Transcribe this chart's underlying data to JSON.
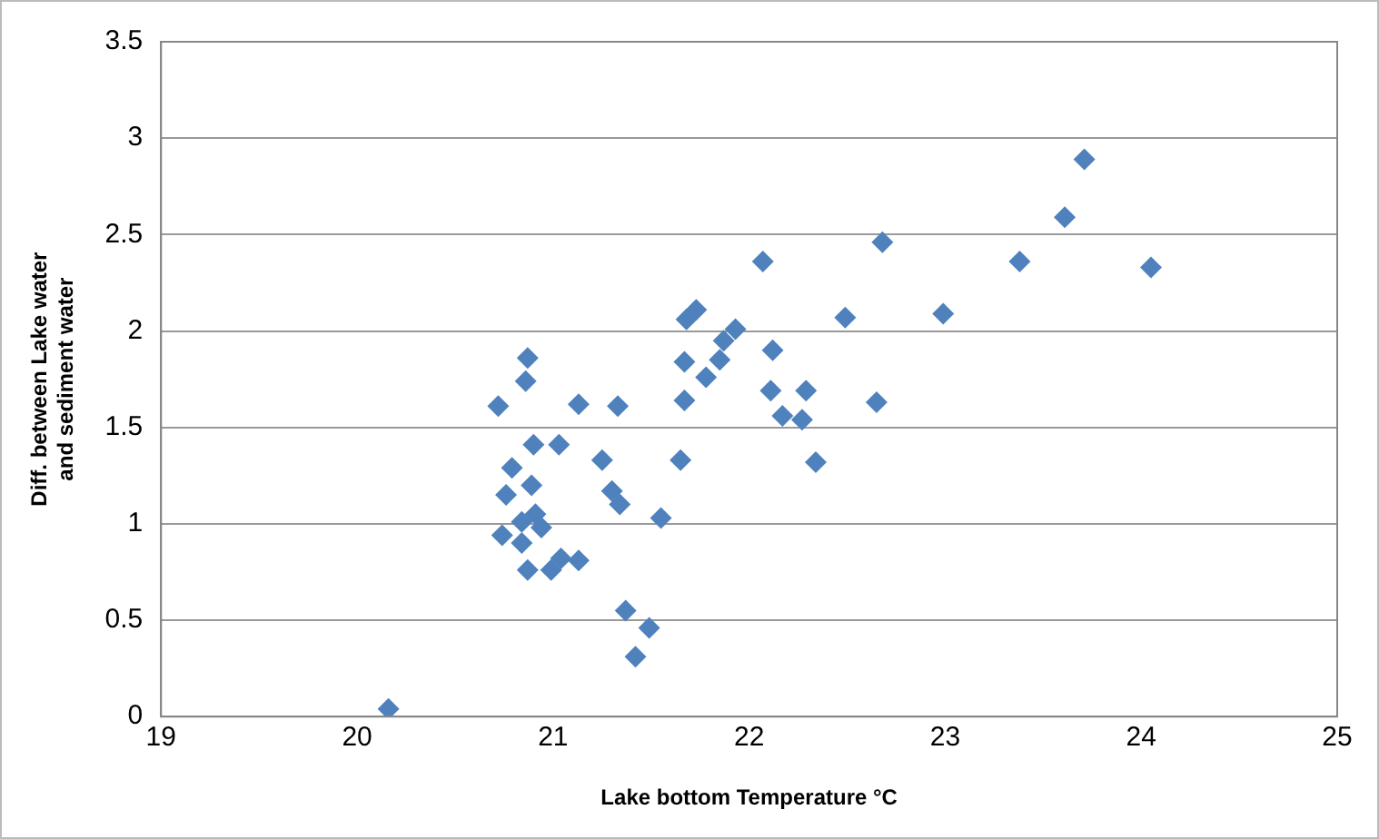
{
  "chart_data": {
    "type": "scatter",
    "xlabel": "Lake bottom Temperature °C",
    "ylabel": "Diff. between Lake water\nand sediment water",
    "marker": "diamond",
    "grid": "y",
    "color": "#4f81bd",
    "xlim": [
      19,
      25
    ],
    "xticks": [
      19,
      20,
      21,
      22,
      23,
      24,
      25
    ],
    "ylim": [
      0,
      3.5
    ],
    "yticks": [
      0,
      0.5,
      1,
      1.5,
      2,
      2.5,
      3,
      3.5
    ],
    "x": [
      20.16,
      20.87,
      20.86,
      20.72,
      21.13,
      21.33,
      20.9,
      21.03,
      20.79,
      21.25,
      20.89,
      20.76,
      21.3,
      21.34,
      21.55,
      21.65,
      20.84,
      20.74,
      20.91,
      20.84,
      20.94,
      20.87,
      20.99,
      21.04,
      21.13,
      21.37,
      21.49,
      21.42,
      21.67,
      21.67,
      22.07,
      22.68,
      23.38,
      21.68,
      21.73,
      22.49,
      22.99,
      21.93,
      21.87,
      21.85,
      21.78,
      22.12,
      22.11,
      22.29,
      22.17,
      22.27,
      22.65,
      22.34,
      23.71,
      23.61,
      24.05
    ],
    "values": [
      0.04,
      1.86,
      1.74,
      1.61,
      1.62,
      1.61,
      1.41,
      1.41,
      1.29,
      1.33,
      1.2,
      1.15,
      1.17,
      1.1,
      1.03,
      1.33,
      1.01,
      0.94,
      1.05,
      0.9,
      0.98,
      0.76,
      0.76,
      0.82,
      0.81,
      0.55,
      0.46,
      0.31,
      1.84,
      1.64,
      2.36,
      2.46,
      2.36,
      2.06,
      2.11,
      2.07,
      2.09,
      2.01,
      1.95,
      1.85,
      1.76,
      1.9,
      1.69,
      1.69,
      1.56,
      1.54,
      1.63,
      1.32,
      2.89,
      2.59,
      2.33
    ]
  }
}
